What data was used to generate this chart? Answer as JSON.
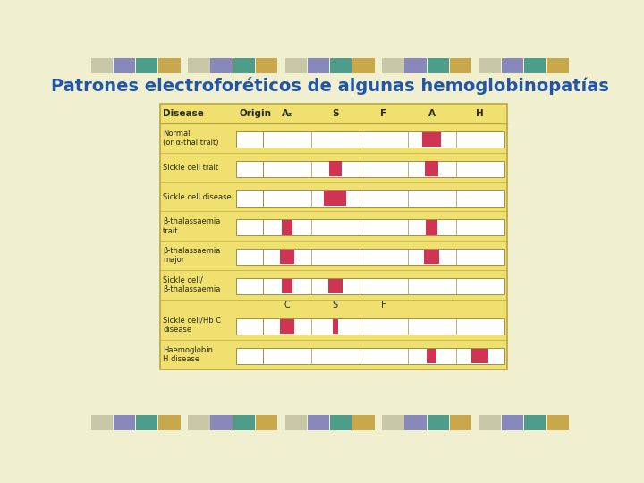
{
  "title": "Patrones electroforéticos de algunas hemoglobinopatías",
  "title_color": "#2255aa",
  "bg_color": "#f0f0d0",
  "panel_bg": "#f0e070",
  "panel_border": "#b8a840",
  "white_box": "#ffffff",
  "red_box": "#cc2244",
  "text_color": "#2a2a1a",
  "tile_top_row1": [
    "#c8c8a8",
    "#c8c8a8",
    "#8888b8",
    "#50a090",
    "#c0a050"
  ],
  "tile_top_row2": [
    "#c8c8a8",
    "#c8c8a8",
    "#8888b8",
    "#50a090",
    "#c0a050"
  ],
  "diseases": [
    "Normal\n(or α-thal trait)",
    "Sickle cell trait",
    "Sickle cell disease",
    "β-thalassaemia\ntrait",
    "β-thalassaemia\nmajor",
    "Sickle cell/\nβ-thalassaemia",
    "Sickle cell/Hb C\ndisease",
    "Haemoglobin\nH disease"
  ],
  "bands": {
    "Normal\n(or α-thal trait)": [
      {
        "pos": "A",
        "size": 1.0
      }
    ],
    "Sickle cell trait": [
      {
        "pos": "S",
        "size": 0.7
      },
      {
        "pos": "A",
        "size": 0.7
      }
    ],
    "Sickle cell disease": [
      {
        "pos": "S",
        "size": 1.2
      }
    ],
    "β-thalassaemia\ntrait": [
      {
        "pos": "A2",
        "size": 0.6
      },
      {
        "pos": "A",
        "size": 0.6
      }
    ],
    "β-thalassaemia\nmajor": [
      {
        "pos": "A2",
        "size": 0.8
      },
      {
        "pos": "A",
        "size": 0.8
      }
    ],
    "Sickle cell/\nβ-thalassaemia": [
      {
        "pos": "A2",
        "size": 0.6
      },
      {
        "pos": "S",
        "size": 0.8
      }
    ],
    "Sickle cell/Hb C\ndisease": [
      {
        "pos": "C",
        "size": 0.8
      },
      {
        "pos": "S2",
        "size": 0.3
      }
    ],
    "Haemoglobin\nH disease": [
      {
        "pos": "A",
        "size": 0.5
      },
      {
        "pos": "H",
        "size": 0.9
      }
    ]
  }
}
